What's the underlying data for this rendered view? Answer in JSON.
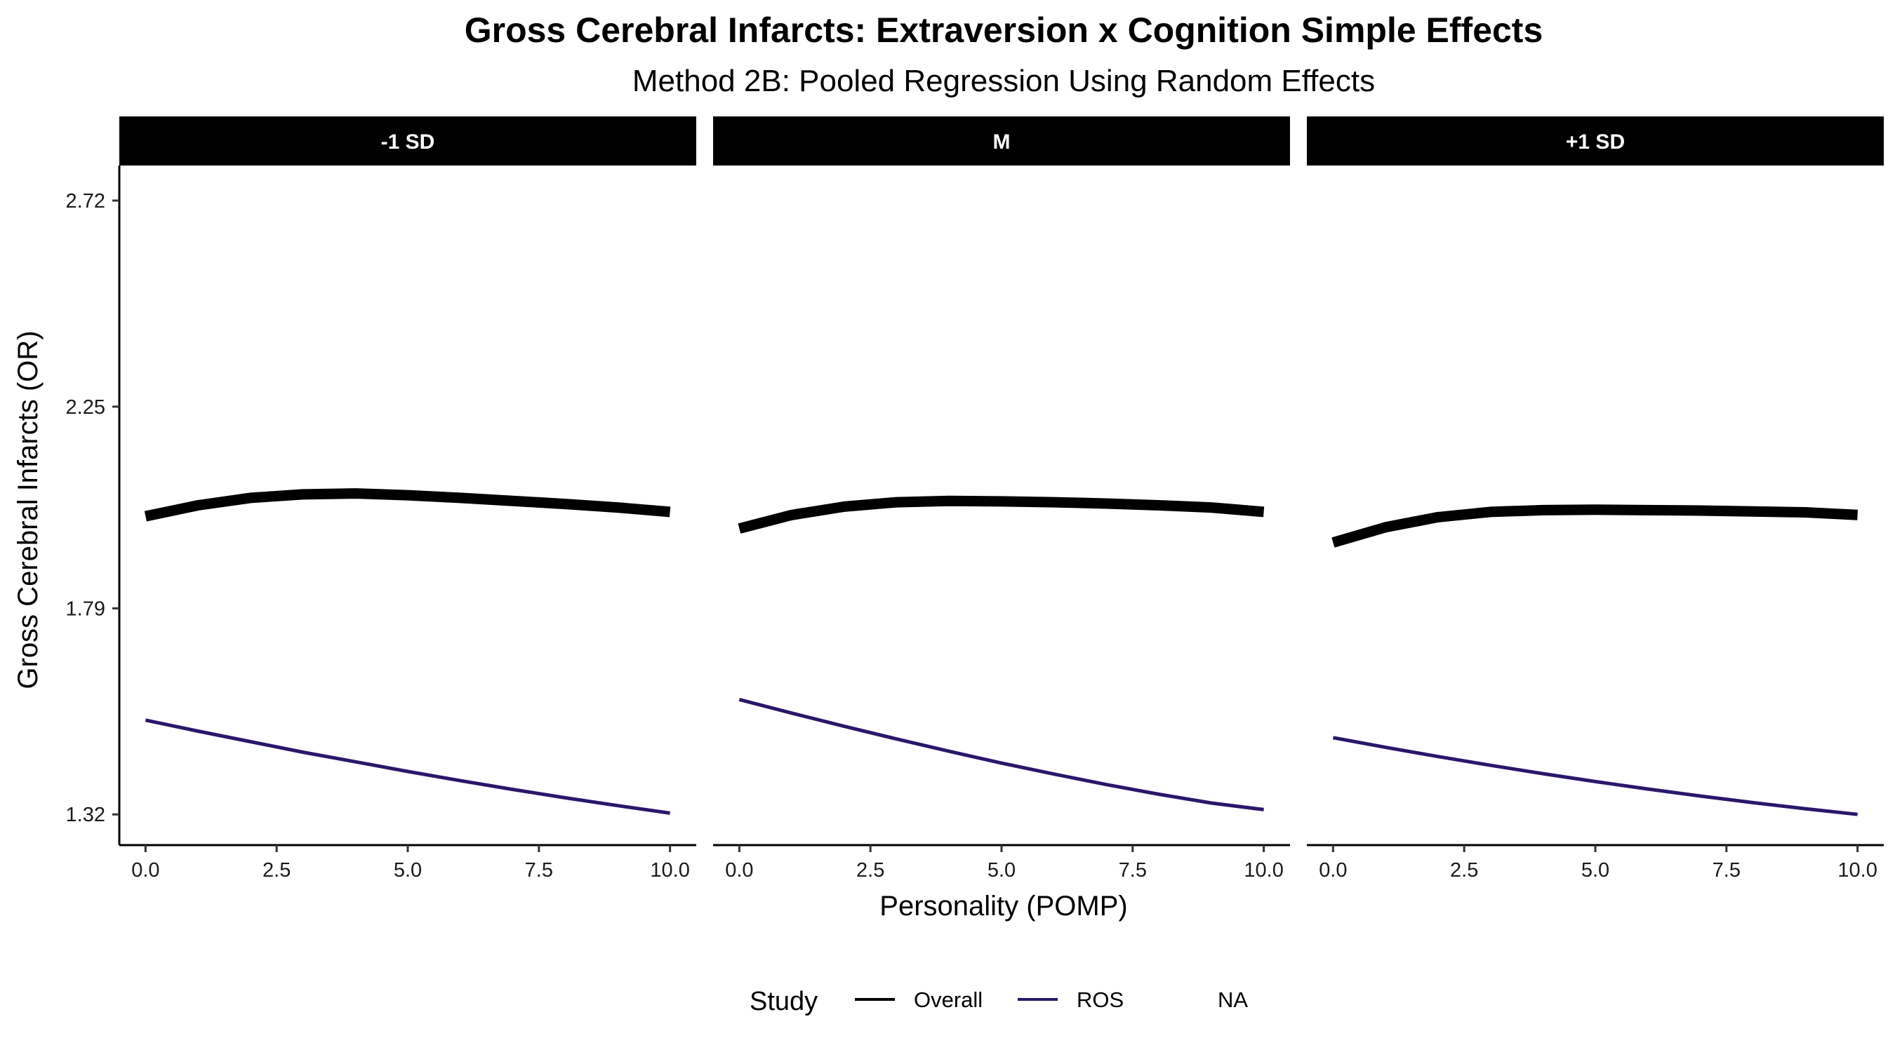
{
  "chart_data": {
    "type": "line",
    "title": "Gross Cerebral Infarcts: Extraversion x Cognition Simple Effects",
    "subtitle": "Method 2B: Pooled Regression Using Random Effects",
    "xlabel": "Personality (POMP)",
    "ylabel": "Gross Cerebral Infarcts (OR)",
    "xlim": [
      -0.5,
      10.5
    ],
    "ylim": [
      1.25,
      2.8
    ],
    "x_ticks": [
      "0.0",
      "2.5",
      "5.0",
      "7.5",
      "10.0"
    ],
    "x_tick_values": [
      0,
      2.5,
      5,
      7.5,
      10
    ],
    "y_ticks": [
      "1.32",
      "1.79",
      "2.25",
      "2.72"
    ],
    "y_tick_values": [
      1.32,
      1.79,
      2.25,
      2.72
    ],
    "grid": false,
    "legend": {
      "title": "Study",
      "position": "bottom",
      "entries": [
        {
          "label": "Overall",
          "color": "#000000"
        },
        {
          "label": "ROS",
          "color": "#2a176b"
        },
        {
          "label": "NA",
          "color": ""
        }
      ]
    },
    "panels": [
      {
        "label": "-1 SD",
        "series": [
          {
            "name": "Overall",
            "color": "#000000",
            "x": [
              0,
              1,
              2,
              3,
              4,
              5,
              6,
              7,
              8,
              9,
              10
            ],
            "y": [
              2.0,
              2.025,
              2.042,
              2.05,
              2.052,
              2.048,
              2.042,
              2.035,
              2.028,
              2.02,
              2.01
            ]
          },
          {
            "name": "ROS",
            "color": "#2a176b",
            "x": [
              0,
              1,
              2,
              3,
              4,
              5,
              6,
              7,
              8,
              9,
              10
            ],
            "y": [
              1.535,
              1.51,
              1.486,
              1.462,
              1.44,
              1.418,
              1.397,
              1.377,
              1.358,
              1.34,
              1.323
            ]
          }
        ]
      },
      {
        "label": "M",
        "series": [
          {
            "name": "Overall",
            "color": "#000000",
            "x": [
              0,
              1,
              2,
              3,
              4,
              5,
              6,
              7,
              8,
              9,
              10
            ],
            "y": [
              1.972,
              2.003,
              2.022,
              2.032,
              2.035,
              2.034,
              2.032,
              2.029,
              2.025,
              2.02,
              2.01
            ]
          },
          {
            "name": "ROS",
            "color": "#2a176b",
            "x": [
              0,
              1,
              2,
              3,
              4,
              5,
              6,
              7,
              8,
              9,
              10
            ],
            "y": [
              1.582,
              1.551,
              1.521,
              1.492,
              1.464,
              1.437,
              1.412,
              1.388,
              1.366,
              1.346,
              1.331
            ]
          }
        ]
      },
      {
        "label": "+1 SD",
        "series": [
          {
            "name": "Overall",
            "color": "#000000",
            "x": [
              0,
              1,
              2,
              3,
              4,
              5,
              6,
              7,
              8,
              9,
              10
            ],
            "y": [
              1.94,
              1.975,
              1.998,
              2.01,
              2.014,
              2.015,
              2.014,
              2.013,
              2.011,
              2.009,
              2.003
            ]
          },
          {
            "name": "ROS",
            "color": "#2a176b",
            "x": [
              0,
              1,
              2,
              3,
              4,
              5,
              6,
              7,
              8,
              9,
              10
            ],
            "y": [
              1.495,
              1.473,
              1.452,
              1.432,
              1.413,
              1.395,
              1.378,
              1.362,
              1.347,
              1.333,
              1.32
            ]
          }
        ]
      }
    ]
  }
}
